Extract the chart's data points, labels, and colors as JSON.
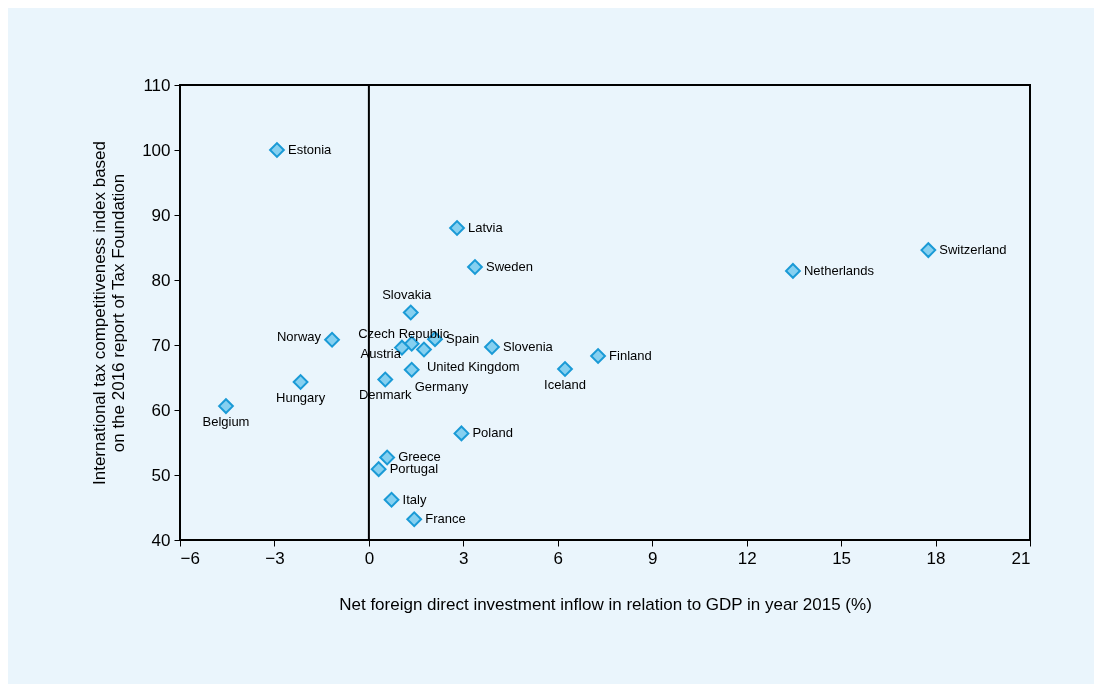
{
  "chart_data": {
    "type": "scatter",
    "xlabel": "Net foreign direct investment inflow in relation to GDP in year 2015 (%)",
    "ylabel": "International tax competitiveness index based\non the 2016 report of Tax Foundation",
    "x": [
      -2.92,
      2.8,
      3.37,
      17.77,
      13.47,
      1.33,
      -1.17,
      1.36,
      1.05,
      2.1,
      1.75,
      3.91,
      1.36,
      0.52,
      -2.17,
      6.23,
      7.28,
      -4.54,
      2.94,
      0.58,
      0.31,
      0.72,
      1.44
    ],
    "series": [
      {
        "color": "#1a9ad6",
        "values": [
          100,
          88.0,
          82.0,
          84.6,
          81.4,
          75.0,
          70.8,
          70.2,
          69.6,
          70.9,
          69.3,
          69.7,
          66.2,
          64.7,
          64.3,
          66.3,
          68.3,
          60.6,
          56.4,
          52.7,
          50.9,
          46.2,
          43.2
        ]
      }
    ],
    "annotations": [
      {
        "text": "Estonia",
        "x": -2.92,
        "y": 100
      },
      {
        "text": "Latvia",
        "x": 2.8,
        "y": 88.0
      },
      {
        "text": "Sweden",
        "x": 3.37,
        "y": 82.0
      },
      {
        "text": "Switzerland",
        "x": 17.77,
        "y": 84.6
      },
      {
        "text": "Netherlands",
        "x": 13.47,
        "y": 81.4
      },
      {
        "text": "Slovakia",
        "x": 1.33,
        "y": 75.0
      },
      {
        "text": "Norway",
        "x": -1.17,
        "y": 70.8
      },
      {
        "text": "Czech Republic",
        "x": 1.36,
        "y": 70.2
      },
      {
        "text": "Austria",
        "x": 1.05,
        "y": 69.6
      },
      {
        "text": "Spain",
        "x": 2.1,
        "y": 70.9
      },
      {
        "text": "United Kingdom",
        "x": 1.75,
        "y": 69.3
      },
      {
        "text": "Slovenia",
        "x": 3.91,
        "y": 69.7
      },
      {
        "text": "Germany",
        "x": 1.36,
        "y": 66.2
      },
      {
        "text": "Denmark",
        "x": 0.52,
        "y": 64.7
      },
      {
        "text": "Hungary",
        "x": -2.17,
        "y": 64.3
      },
      {
        "text": "Iceland",
        "x": 6.23,
        "y": 66.3
      },
      {
        "text": "Finland",
        "x": 7.28,
        "y": 68.3
      },
      {
        "text": "Belgium",
        "x": -4.54,
        "y": 60.6
      },
      {
        "text": "Poland",
        "x": 2.94,
        "y": 56.4
      },
      {
        "text": "Greece",
        "x": 0.58,
        "y": 52.7
      },
      {
        "text": "Portugal",
        "x": 0.31,
        "y": 50.9
      },
      {
        "text": "Italy",
        "x": 0.72,
        "y": 46.2
      },
      {
        "text": "France",
        "x": 1.44,
        "y": 43.2
      }
    ],
    "xlim": [
      -6,
      21
    ],
    "xticks": [
      -6,
      -3,
      0,
      3,
      6,
      9,
      12,
      15,
      18,
      21
    ],
    "ylim": [
      40,
      110
    ],
    "yticks": [
      40,
      50,
      60,
      70,
      80,
      90,
      100,
      110
    ],
    "ref_lines": [
      {
        "axis": "x",
        "value": 0,
        "color": "#000000"
      }
    ],
    "marker": "diamond",
    "grid": false
  }
}
